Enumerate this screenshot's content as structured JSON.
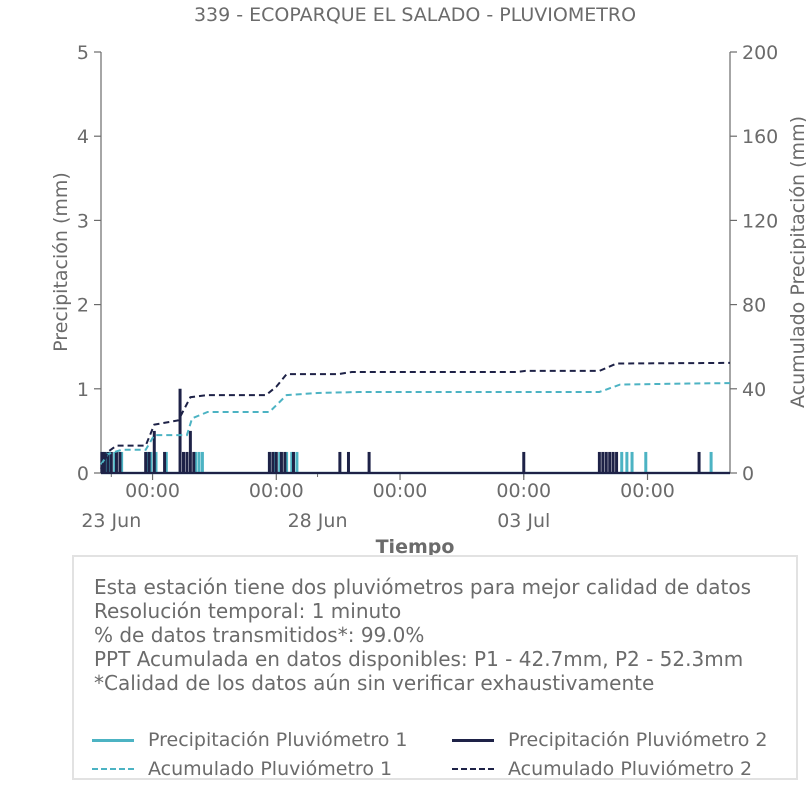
{
  "chart_data": {
    "type": "line",
    "title": "339 - ECOPARQUE EL SALADO - PLUVIOMETRO",
    "xlabel": "Tiempo",
    "ylabel": "Precipitación (mm)",
    "y2label": "Acumulado Precipitación (mm)",
    "x_range": [
      "2024-06-22T18:00",
      "2024-07-08T00:00"
    ],
    "ylim": [
      0,
      5
    ],
    "y2lim": [
      0,
      200
    ],
    "yticks": [
      0,
      1,
      2,
      3,
      4,
      5
    ],
    "y2ticks": [
      0,
      40,
      80,
      120,
      160,
      200
    ],
    "xticks": [
      {
        "x": "2024-06-24T00:00",
        "time": "00:00",
        "date": "23 Jun"
      },
      {
        "x": "2024-06-27T00:00",
        "time": "00:00",
        "date": "28 Jun"
      },
      {
        "x": "2024-06-30T00:00",
        "time": "00:00",
        "date": ""
      },
      {
        "x": "2024-07-03T00:00",
        "time": "00:00",
        "date": "03 Jul"
      },
      {
        "x": "2024-07-06T00:00",
        "time": "00:00",
        "date": ""
      }
    ],
    "date_label_positions": [
      "2024-06-23T00:00",
      "2024-06-28T00:00",
      "2024-07-03T00:00"
    ],
    "grid": false,
    "series": [
      {
        "name": "Precipitación Pluviómetro 1",
        "style": "solid",
        "axis": "left",
        "color": "#4cb3c3",
        "points": [
          [
            "2024-06-22T19:00",
            0.25
          ],
          [
            "2024-06-22T21:00",
            0.25
          ],
          [
            "2024-06-22T23:00",
            0.25
          ],
          [
            "2024-06-23T02:00",
            0.25
          ],
          [
            "2024-06-23T06:00",
            0.25
          ],
          [
            "2024-06-23T21:00",
            0.25
          ],
          [
            "2024-06-23T23:00",
            0.25
          ],
          [
            "2024-06-24T02:00",
            0.25
          ],
          [
            "2024-06-24T08:00",
            0.25
          ],
          [
            "2024-06-25T01:00",
            0.25
          ],
          [
            "2024-06-25T03:00",
            0.25
          ],
          [
            "2024-06-25T05:00",
            0.25
          ],
          [
            "2024-06-26T20:00",
            0.25
          ],
          [
            "2024-06-26T23:00",
            0.25
          ],
          [
            "2024-06-27T02:00",
            0.25
          ],
          [
            "2024-06-27T06:00",
            0.25
          ],
          [
            "2024-06-27T09:00",
            0.25
          ],
          [
            "2024-06-27T12:00",
            0.25
          ],
          [
            "2024-07-05T09:00",
            0.25
          ],
          [
            "2024-07-05T12:00",
            0.25
          ],
          [
            "2024-07-05T15:00",
            0.25
          ],
          [
            "2024-07-05T23:00",
            0.25
          ],
          [
            "2024-07-07T13:00",
            0.25
          ]
        ]
      },
      {
        "name": "Precipitación Pluviómetro 2",
        "style": "solid",
        "axis": "left",
        "color": "#1e2247",
        "points": [
          [
            "2024-06-22T18:30",
            0.25
          ],
          [
            "2024-06-22T20:00",
            0.25
          ],
          [
            "2024-06-22T22:00",
            0.25
          ],
          [
            "2024-06-23T00:00",
            0.25
          ],
          [
            "2024-06-23T03:00",
            0.25
          ],
          [
            "2024-06-23T05:00",
            0.25
          ],
          [
            "2024-06-23T20:00",
            0.25
          ],
          [
            "2024-06-23T22:00",
            0.25
          ],
          [
            "2024-06-24T01:00",
            0.5
          ],
          [
            "2024-06-24T07:00",
            0.25
          ],
          [
            "2024-06-24T16:00",
            1.0
          ],
          [
            "2024-06-24T18:00",
            0.25
          ],
          [
            "2024-06-24T20:00",
            0.25
          ],
          [
            "2024-06-24T22:00",
            0.5
          ],
          [
            "2024-06-25T00:00",
            0.25
          ],
          [
            "2024-06-26T20:00",
            0.25
          ],
          [
            "2024-06-26T22:00",
            0.25
          ],
          [
            "2024-06-27T00:00",
            0.25
          ],
          [
            "2024-06-27T03:00",
            0.25
          ],
          [
            "2024-06-27T05:00",
            0.25
          ],
          [
            "2024-06-27T10:00",
            0.25
          ],
          [
            "2024-06-28T13:00",
            0.25
          ],
          [
            "2024-06-28T18:00",
            0.25
          ],
          [
            "2024-06-29T06:00",
            0.25
          ],
          [
            "2024-07-03T00:00",
            0.25
          ],
          [
            "2024-07-04T20:00",
            0.25
          ],
          [
            "2024-07-04T22:00",
            0.25
          ],
          [
            "2024-07-05T00:00",
            0.25
          ],
          [
            "2024-07-05T02:00",
            0.25
          ],
          [
            "2024-07-05T04:00",
            0.25
          ],
          [
            "2024-07-05T06:00",
            0.25
          ],
          [
            "2024-07-07T06:00",
            0.25
          ]
        ]
      },
      {
        "name": "Acumulado Pluviómetro 1",
        "style": "dashed",
        "axis": "right",
        "color": "#4cb3c3",
        "points": [
          [
            "2024-06-22T18:00",
            4
          ],
          [
            "2024-06-22T22:00",
            9
          ],
          [
            "2024-06-23T06:00",
            11
          ],
          [
            "2024-06-23T20:00",
            11
          ],
          [
            "2024-06-24T01:00",
            18
          ],
          [
            "2024-06-24T20:00",
            18
          ],
          [
            "2024-06-24T23:00",
            26
          ],
          [
            "2024-06-25T08:00",
            29
          ],
          [
            "2024-06-26T20:00",
            29
          ],
          [
            "2024-06-27T06:00",
            37
          ],
          [
            "2024-06-28T00:00",
            38
          ],
          [
            "2024-06-29T00:00",
            38.5
          ],
          [
            "2024-07-04T20:00",
            38.5
          ],
          [
            "2024-07-05T08:00",
            42
          ],
          [
            "2024-07-07T00:00",
            42.5
          ],
          [
            "2024-07-08T00:00",
            42.7
          ]
        ]
      },
      {
        "name": "Acumulado Pluviómetro 2",
        "style": "dashed",
        "axis": "right",
        "color": "#1e2247",
        "points": [
          [
            "2024-06-22T18:00",
            2
          ],
          [
            "2024-06-22T22:00",
            10
          ],
          [
            "2024-06-23T03:00",
            13
          ],
          [
            "2024-06-23T20:00",
            13
          ],
          [
            "2024-06-24T01:00",
            23
          ],
          [
            "2024-06-24T15:00",
            25
          ],
          [
            "2024-06-24T22:00",
            36
          ],
          [
            "2024-06-25T08:00",
            37
          ],
          [
            "2024-06-26T18:00",
            37
          ],
          [
            "2024-06-27T00:00",
            41
          ],
          [
            "2024-06-27T06:00",
            47
          ],
          [
            "2024-06-28T12:00",
            47
          ],
          [
            "2024-06-28T20:00",
            48
          ],
          [
            "2024-07-02T20:00",
            48
          ],
          [
            "2024-07-03T01:00",
            48.5
          ],
          [
            "2024-07-04T20:00",
            48.5
          ],
          [
            "2024-07-05T06:00",
            52
          ],
          [
            "2024-07-08T00:00",
            52.3
          ]
        ]
      }
    ]
  },
  "info": {
    "lines": [
      "Esta estación tiene dos pluviómetros para mejor calidad de datos",
      "Resolución temporal: 1 minuto",
      "% de datos transmitidos*: 99.0%",
      "PPT Acumulada en datos disponibles: P1 - 42.7mm, P2 - 52.3mm",
      "*Calidad de los datos aún sin verificar exhaustivamente"
    ]
  },
  "legend": {
    "items": [
      {
        "label": "Precipitación Pluviómetro 1",
        "style": "solid-p1"
      },
      {
        "label": "Precipitación Pluviómetro 2",
        "style": "solid-p2"
      },
      {
        "label": "Acumulado Pluviómetro 1",
        "style": "dash-p1"
      },
      {
        "label": "Acumulado Pluviómetro 2",
        "style": "dash-p2"
      }
    ]
  }
}
